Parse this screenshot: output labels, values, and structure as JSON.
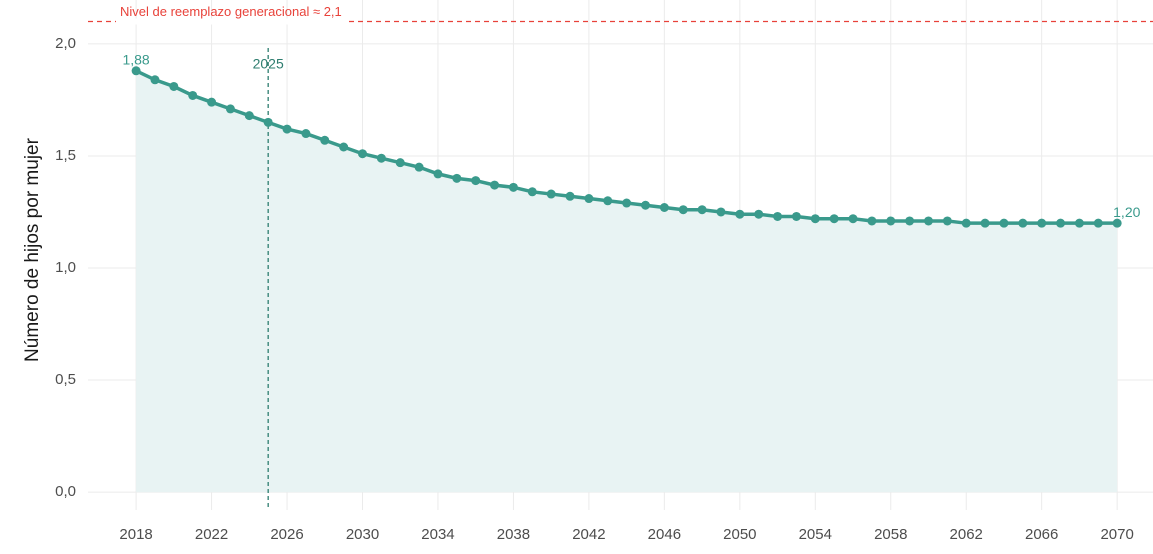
{
  "chart_data": {
    "type": "line",
    "ylabel": "Número de hijos por mujer",
    "x": [
      2018,
      2019,
      2020,
      2021,
      2022,
      2023,
      2024,
      2025,
      2026,
      2027,
      2028,
      2029,
      2030,
      2031,
      2032,
      2033,
      2034,
      2035,
      2036,
      2037,
      2038,
      2039,
      2040,
      2041,
      2042,
      2043,
      2044,
      2045,
      2046,
      2047,
      2048,
      2049,
      2050,
      2051,
      2052,
      2053,
      2054,
      2055,
      2056,
      2057,
      2058,
      2059,
      2060,
      2061,
      2062,
      2063,
      2064,
      2065,
      2066,
      2067,
      2068,
      2069,
      2070
    ],
    "values": [
      1.88,
      1.84,
      1.81,
      1.77,
      1.74,
      1.71,
      1.68,
      1.65,
      1.62,
      1.6,
      1.57,
      1.54,
      1.51,
      1.49,
      1.47,
      1.45,
      1.42,
      1.4,
      1.39,
      1.37,
      1.36,
      1.34,
      1.33,
      1.32,
      1.31,
      1.3,
      1.29,
      1.28,
      1.27,
      1.26,
      1.26,
      1.25,
      1.24,
      1.24,
      1.23,
      1.23,
      1.22,
      1.22,
      1.22,
      1.21,
      1.21,
      1.21,
      1.21,
      1.21,
      1.2,
      1.2,
      1.2,
      1.2,
      1.2,
      1.2,
      1.2,
      1.2,
      1.2
    ],
    "value_labels": [
      "1,88",
      null,
      null,
      null,
      null,
      null,
      null,
      null,
      null,
      null,
      null,
      null,
      null,
      null,
      null,
      null,
      null,
      null,
      null,
      null,
      null,
      null,
      null,
      null,
      null,
      null,
      null,
      null,
      null,
      null,
      null,
      null,
      null,
      null,
      null,
      null,
      null,
      null,
      null,
      null,
      null,
      null,
      null,
      null,
      null,
      null,
      null,
      null,
      null,
      null,
      null,
      null,
      "1,20"
    ],
    "color": "#3a9a8c",
    "area_color": "#e8f3f3",
    "xlim": [
      2015.45,
      2071.9
    ],
    "xticks": [
      2018,
      2022,
      2026,
      2030,
      2034,
      2038,
      2042,
      2046,
      2050,
      2054,
      2058,
      2062,
      2066,
      2070
    ],
    "ylim": [
      -0.08,
      2.196
    ],
    "yticks": [
      {
        "value": 0,
        "label": "0,0"
      },
      {
        "value": 0.5,
        "label": "0,5"
      },
      {
        "value": 1,
        "label": "1,0"
      },
      {
        "value": 1.5,
        "label": "1,5"
      },
      {
        "value": 2,
        "label": "2,0"
      }
    ],
    "grid": true,
    "hline": {
      "value": 2.1,
      "label": "Nivel de reemplazo generacional ≈ 2,1",
      "color": "#e8423a"
    },
    "vline": {
      "value": 2025,
      "color": "#2e7d6f"
    }
  }
}
